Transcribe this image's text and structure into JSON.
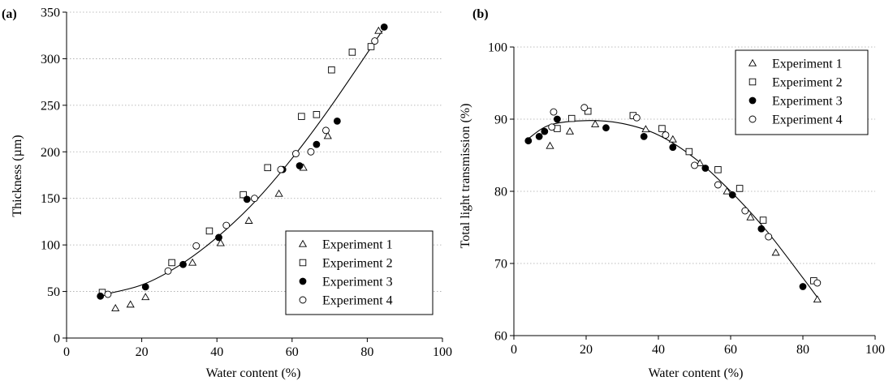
{
  "figure": {
    "panels": [
      {
        "panel_label": "(a)",
        "xlabel": "Water content (%)",
        "ylabel": "Thickness  (µm)",
        "legend": [
          "Experiment 1",
          "Experiment 2",
          "Experiment 3",
          "Experiment 4"
        ]
      },
      {
        "panel_label": "(b)",
        "xlabel": "Water content (%)",
        "ylabel": "Total light transmission (%)",
        "legend": [
          "Experiment 1",
          "Experiment 2",
          "Experiment 3",
          "Experiment 4"
        ]
      }
    ]
  },
  "chart_data": [
    {
      "type": "scatter",
      "xlabel": "Water content (%)",
      "ylabel": "Thickness  (µm)",
      "xlim": [
        0,
        100
      ],
      "ylim": [
        0,
        350
      ],
      "xticks": [
        0,
        20,
        40,
        60,
        80,
        100
      ],
      "yticks": [
        0,
        50,
        100,
        150,
        200,
        250,
        300,
        350
      ],
      "grid": "horizontal dotted",
      "legend_position": "bottom-right",
      "series": [
        {
          "name": "Experiment 1",
          "marker": "triangle",
          "points": [
            [
              13,
              32
            ],
            [
              17,
              36
            ],
            [
              21,
              44
            ],
            [
              33.5,
              81
            ],
            [
              41,
              102
            ],
            [
              48.5,
              126
            ],
            [
              56.5,
              155
            ],
            [
              63,
              183
            ],
            [
              69.5,
              217
            ],
            [
              83,
              330
            ]
          ]
        },
        {
          "name": "Experiment 2",
          "marker": "square",
          "points": [
            [
              9.5,
              49
            ],
            [
              28,
              81
            ],
            [
              38,
              115
            ],
            [
              47,
              154
            ],
            [
              53.5,
              183
            ],
            [
              62.5,
              238
            ],
            [
              66.5,
              240
            ],
            [
              70.5,
              288
            ],
            [
              76,
              307
            ],
            [
              81,
              313
            ]
          ]
        },
        {
          "name": "Experiment 3",
          "marker": "filled-circle",
          "points": [
            [
              9,
              45
            ],
            [
              21,
              55
            ],
            [
              31,
              79
            ],
            [
              40.5,
              108
            ],
            [
              48,
              149
            ],
            [
              57.5,
              181
            ],
            [
              62,
              185
            ],
            [
              66.5,
              208
            ],
            [
              72,
              233
            ],
            [
              84.5,
              334
            ]
          ]
        },
        {
          "name": "Experiment 4",
          "marker": "open-circle",
          "points": [
            [
              11,
              47
            ],
            [
              27,
              72
            ],
            [
              34.5,
              99
            ],
            [
              42.5,
              121
            ],
            [
              50,
              150
            ],
            [
              57,
              181
            ],
            [
              61,
              198
            ],
            [
              65,
              200
            ],
            [
              69,
              223
            ],
            [
              82,
              319
            ]
          ]
        }
      ],
      "fit_curve": {
        "x": [
          9,
          20,
          30,
          40,
          50,
          60,
          70,
          84
        ],
        "y": [
          46,
          57,
          78,
          108,
          146,
          193,
          247,
          330
        ]
      }
    },
    {
      "type": "scatter",
      "xlabel": "Water content (%)",
      "ylabel": "Total light transmission (%)",
      "xlim": [
        0,
        100
      ],
      "ylim": [
        60,
        100
      ],
      "xticks": [
        0,
        20,
        40,
        60,
        80,
        100
      ],
      "yticks": [
        60,
        70,
        80,
        90,
        100
      ],
      "grid": "horizontal dotted",
      "legend_position": "top-right",
      "series": [
        {
          "name": "Experiment 1",
          "marker": "triangle",
          "points": [
            [
              10,
              86.3
            ],
            [
              15.5,
              88.3
            ],
            [
              22.5,
              89.3
            ],
            [
              36.5,
              88.6
            ],
            [
              44,
              87.2
            ],
            [
              51.5,
              83.9
            ],
            [
              59,
              80
            ],
            [
              65.5,
              76.4
            ],
            [
              72.5,
              71.5
            ],
            [
              84,
              65
            ]
          ]
        },
        {
          "name": "Experiment 2",
          "marker": "square",
          "points": [
            [
              12,
              88.7
            ],
            [
              16,
              90.1
            ],
            [
              20.5,
              91.1
            ],
            [
              33,
              90.5
            ],
            [
              41,
              88.7
            ],
            [
              48.5,
              85.5
            ],
            [
              56.5,
              83
            ],
            [
              62.5,
              80.4
            ],
            [
              69,
              76
            ],
            [
              83,
              67.6
            ]
          ]
        },
        {
          "name": "Experiment 3",
          "marker": "filled-circle",
          "points": [
            [
              4,
              87
            ],
            [
              7,
              87.6
            ],
            [
              8.5,
              88.3
            ],
            [
              12,
              90
            ],
            [
              25.5,
              88.8
            ],
            [
              36,
              87.6
            ],
            [
              44,
              86.1
            ],
            [
              53,
              83.2
            ],
            [
              60.5,
              79.5
            ],
            [
              68.5,
              74.8
            ],
            [
              80,
              66.8
            ]
          ]
        },
        {
          "name": "Experiment 4",
          "marker": "open-circle",
          "points": [
            [
              10.5,
              88.9
            ],
            [
              11,
              91
            ],
            [
              19.5,
              91.6
            ],
            [
              34,
              90.2
            ],
            [
              42,
              87.8
            ],
            [
              50,
              83.6
            ],
            [
              56.5,
              80.9
            ],
            [
              64,
              77.3
            ],
            [
              70.5,
              73.7
            ],
            [
              84,
              67.3
            ]
          ]
        }
      ],
      "fit_curve": {
        "x": [
          4,
          10,
          20,
          30,
          40,
          50,
          60,
          70,
          80,
          84
        ],
        "y": [
          87.3,
          89.2,
          89.8,
          89.4,
          87.8,
          84.6,
          80,
          74.5,
          68,
          65.3
        ]
      }
    }
  ]
}
